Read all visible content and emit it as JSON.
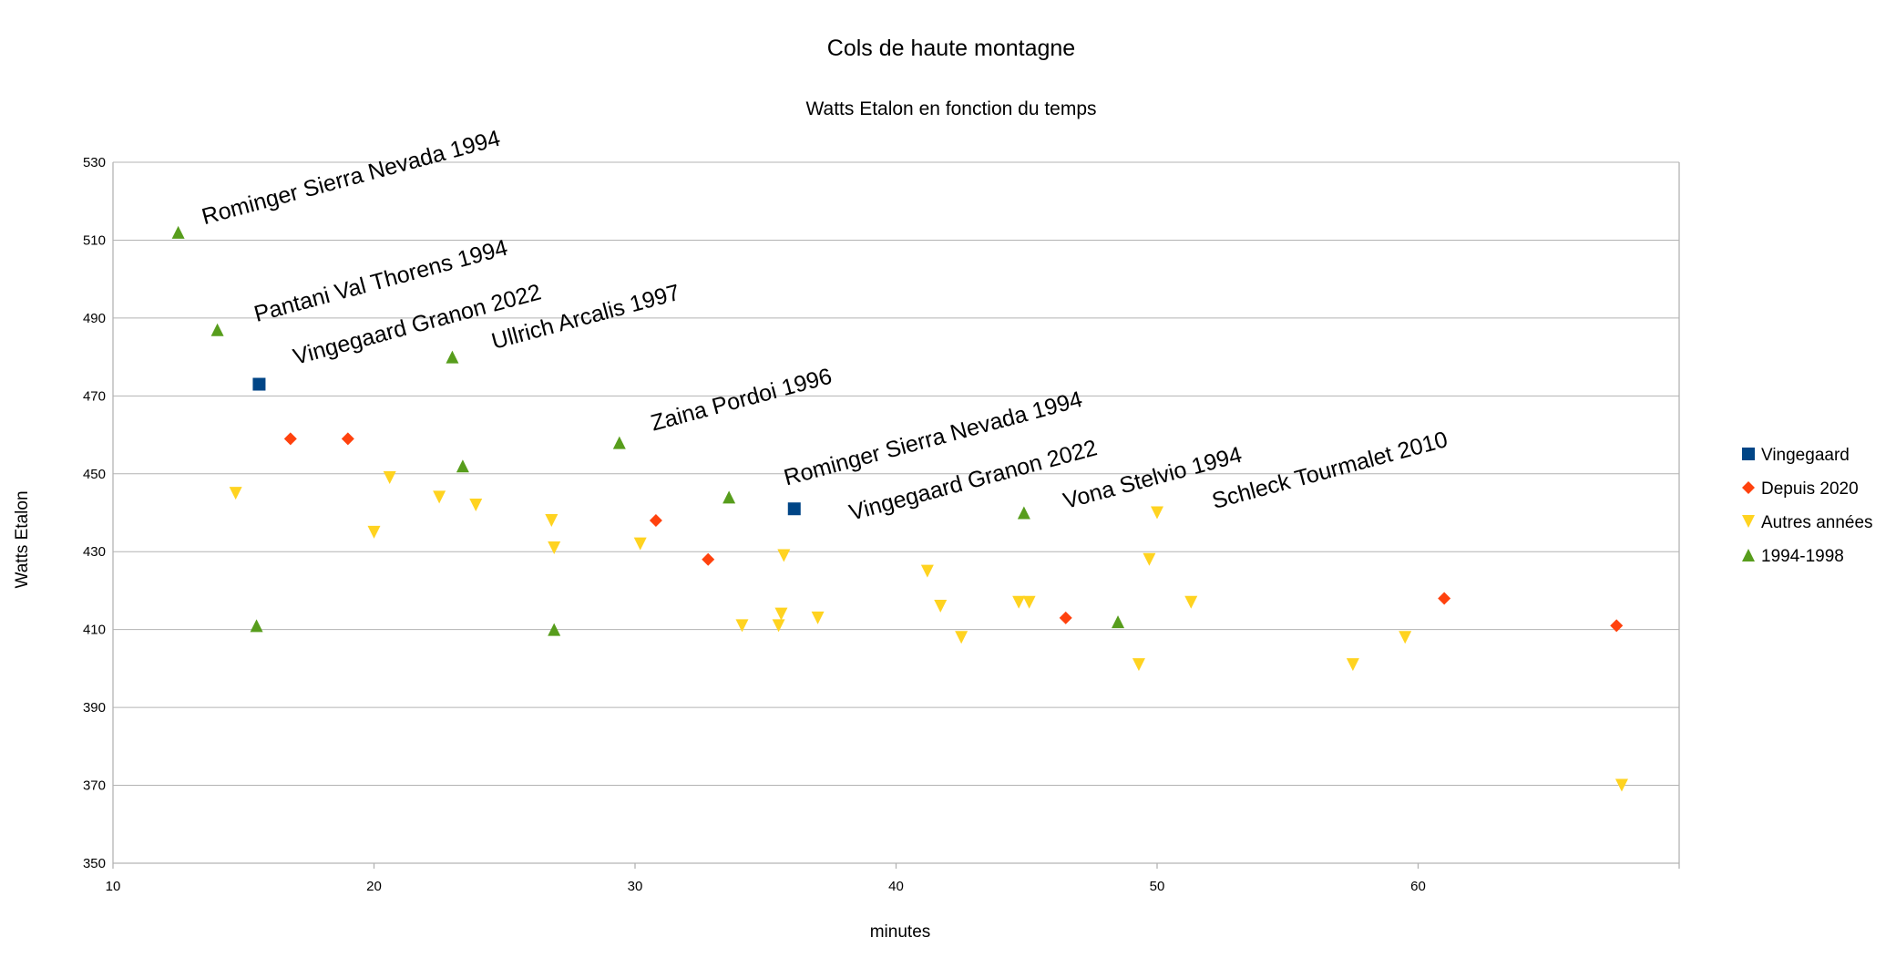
{
  "chart_data": {
    "type": "scatter",
    "title": "Cols de haute montagne",
    "subtitle": "Watts Etalon en fonction du temps",
    "xlabel": "minutes",
    "ylabel": "Watts Etalon",
    "xlim": [
      10,
      70
    ],
    "ylim": [
      350,
      530
    ],
    "x_ticks": [
      10,
      20,
      30,
      40,
      50,
      60
    ],
    "y_ticks": [
      350,
      370,
      390,
      410,
      430,
      450,
      470,
      490,
      510,
      530
    ],
    "grid": true,
    "legend_position": "right",
    "series": [
      {
        "name": "Vingegaard",
        "color": "#004586",
        "marker": "square",
        "points": [
          [
            15.6,
            473
          ],
          [
            36.1,
            441
          ]
        ]
      },
      {
        "name": "Depuis 2020",
        "color": "#ff420e",
        "marker": "diamond",
        "points": [
          [
            16.8,
            459
          ],
          [
            19.0,
            459
          ],
          [
            30.8,
            438
          ],
          [
            32.8,
            428
          ],
          [
            46.5,
            413
          ],
          [
            61.0,
            418
          ],
          [
            67.6,
            411
          ]
        ]
      },
      {
        "name": "Autres années",
        "color": "#ffd320",
        "marker": "triangle-down",
        "points": [
          [
            14.7,
            445
          ],
          [
            20.0,
            435
          ],
          [
            20.6,
            449
          ],
          [
            22.5,
            444
          ],
          [
            23.9,
            442
          ],
          [
            26.8,
            438
          ],
          [
            26.9,
            431
          ],
          [
            30.2,
            432
          ],
          [
            34.1,
            411
          ],
          [
            35.5,
            411
          ],
          [
            35.6,
            414
          ],
          [
            35.7,
            429
          ],
          [
            37.0,
            413
          ],
          [
            41.2,
            425
          ],
          [
            41.7,
            416
          ],
          [
            42.5,
            408
          ],
          [
            44.7,
            417
          ],
          [
            45.1,
            417
          ],
          [
            49.3,
            401
          ],
          [
            49.7,
            428
          ],
          [
            50.0,
            440
          ],
          [
            51.3,
            417
          ],
          [
            57.5,
            401
          ],
          [
            59.5,
            408
          ],
          [
            67.8,
            370
          ]
        ]
      },
      {
        "name": "1994-1998",
        "color": "#579d1c",
        "marker": "triangle-up",
        "points": [
          [
            12.5,
            512
          ],
          [
            14.0,
            487
          ],
          [
            15.5,
            411
          ],
          [
            23.0,
            480
          ],
          [
            23.4,
            452
          ],
          [
            26.9,
            410
          ],
          [
            29.4,
            458
          ],
          [
            33.6,
            444
          ],
          [
            44.9,
            440
          ],
          [
            48.5,
            412
          ]
        ]
      }
    ],
    "annotations": [
      {
        "text": "Rominger Sierra Nevada 1994",
        "x": 13.5,
        "y": 514
      },
      {
        "text": "Pantani Val Thorens 1994",
        "x": 15.5,
        "y": 489
      },
      {
        "text": "Vingegaard Granon 2022",
        "x": 17.0,
        "y": 478
      },
      {
        "text": "Ullrich Arcalis 1997",
        "x": 24.6,
        "y": 482
      },
      {
        "text": "Zaina Pordoi 1996",
        "x": 30.7,
        "y": 461
      },
      {
        "text": "Rominger Sierra Nevada 1994",
        "x": 35.8,
        "y": 447
      },
      {
        "text": "Vingegaard Granon 2022",
        "x": 38.3,
        "y": 438
      },
      {
        "text": "Vona Stelvio 1994",
        "x": 46.5,
        "y": 441
      },
      {
        "text": "Schleck Tourmalet 2010",
        "x": 52.2,
        "y": 441
      }
    ]
  }
}
